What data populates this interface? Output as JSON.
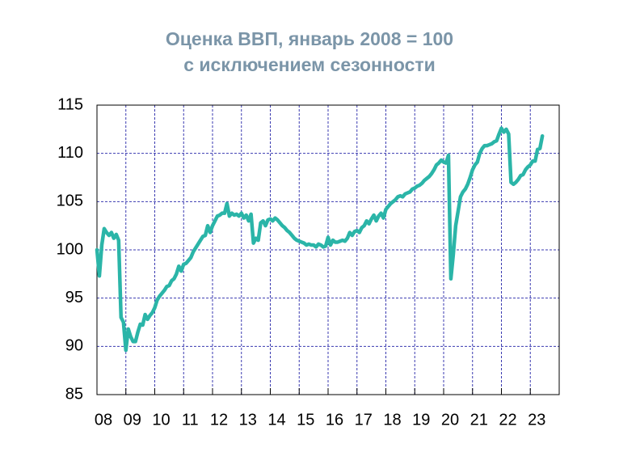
{
  "chart_data": {
    "type": "line",
    "title": "Оценка ВВП, январь 2008 = 100",
    "subtitle": "с исключением сезонности",
    "color": "#2bb5a8",
    "grid": true,
    "xlim": [
      2008,
      2024
    ],
    "xticks": [
      {
        "value": 2008,
        "label": "08"
      },
      {
        "value": 2009,
        "label": "09"
      },
      {
        "value": 2010,
        "label": "10"
      },
      {
        "value": 2011,
        "label": "11"
      },
      {
        "value": 2012,
        "label": "12"
      },
      {
        "value": 2013,
        "label": "13"
      },
      {
        "value": 2014,
        "label": "14"
      },
      {
        "value": 2015,
        "label": "15"
      },
      {
        "value": 2016,
        "label": "16"
      },
      {
        "value": 2017,
        "label": "17"
      },
      {
        "value": 2018,
        "label": "18"
      },
      {
        "value": 2019,
        "label": "19"
      },
      {
        "value": 2020,
        "label": "20"
      },
      {
        "value": 2021,
        "label": "21"
      },
      {
        "value": 2022,
        "label": "22"
      },
      {
        "value": 2023,
        "label": "23"
      }
    ],
    "ylim": [
      85,
      115
    ],
    "yticks": [
      85,
      90,
      95,
      100,
      105,
      110,
      115
    ],
    "x": [
      2008,
      2008.083,
      2008.167,
      2008.25,
      2008.333,
      2008.417,
      2008.5,
      2008.583,
      2008.667,
      2008.75,
      2008.833,
      2008.917,
      2009,
      2009.083,
      2009.167,
      2009.25,
      2009.333,
      2009.417,
      2009.5,
      2009.583,
      2009.667,
      2009.75,
      2009.833,
      2009.917,
      2010,
      2010.083,
      2010.167,
      2010.25,
      2010.333,
      2010.417,
      2010.5,
      2010.583,
      2010.667,
      2010.75,
      2010.833,
      2010.917,
      2011,
      2011.083,
      2011.167,
      2011.25,
      2011.333,
      2011.417,
      2011.5,
      2011.583,
      2011.667,
      2011.75,
      2011.833,
      2011.917,
      2012,
      2012.083,
      2012.167,
      2012.25,
      2012.333,
      2012.417,
      2012.5,
      2012.583,
      2012.667,
      2012.75,
      2012.833,
      2012.917,
      2013,
      2013.083,
      2013.167,
      2013.25,
      2013.333,
      2013.417,
      2013.5,
      2013.583,
      2013.667,
      2013.75,
      2013.833,
      2013.917,
      2014,
      2014.083,
      2014.167,
      2014.25,
      2014.333,
      2014.417,
      2014.5,
      2014.583,
      2014.667,
      2014.75,
      2014.833,
      2014.917,
      2015,
      2015.083,
      2015.167,
      2015.25,
      2015.333,
      2015.417,
      2015.5,
      2015.583,
      2015.667,
      2015.75,
      2015.833,
      2015.917,
      2016,
      2016.083,
      2016.167,
      2016.25,
      2016.333,
      2016.417,
      2016.5,
      2016.583,
      2016.667,
      2016.75,
      2016.833,
      2016.917,
      2017,
      2017.083,
      2017.167,
      2017.25,
      2017.333,
      2017.417,
      2017.5,
      2017.583,
      2017.667,
      2017.75,
      2017.833,
      2017.917,
      2018,
      2018.083,
      2018.167,
      2018.25,
      2018.333,
      2018.417,
      2018.5,
      2018.583,
      2018.667,
      2018.75,
      2018.833,
      2018.917,
      2019,
      2019.083,
      2019.167,
      2019.25,
      2019.333,
      2019.417,
      2019.5,
      2019.583,
      2019.667,
      2019.75,
      2019.833,
      2019.917,
      2020,
      2020.083,
      2020.167,
      2020.25,
      2020.333,
      2020.417,
      2020.5,
      2020.583,
      2020.667,
      2020.75,
      2020.833,
      2020.917,
      2021,
      2021.083,
      2021.167,
      2021.25,
      2021.333,
      2021.417,
      2021.5,
      2021.583,
      2021.667,
      2021.75,
      2021.833,
      2021.917,
      2022,
      2022.083,
      2022.167,
      2022.25,
      2022.333,
      2022.417,
      2022.5,
      2022.583,
      2022.667,
      2022.75,
      2022.833,
      2022.917,
      2023,
      2023.083,
      2023.167,
      2023.25,
      2023.333,
      2023.417
    ],
    "values": [
      100,
      97.3,
      100.5,
      102.2,
      101.8,
      101.5,
      101.8,
      101.2,
      101.6,
      101,
      93,
      92.5,
      89.6,
      91.8,
      91,
      90.5,
      90.5,
      91.5,
      92.3,
      92.2,
      93.3,
      92.8,
      93.2,
      93.5,
      94,
      94.8,
      95.2,
      95.5,
      95.8,
      96.2,
      96.3,
      96.8,
      97,
      97.5,
      98.3,
      97.8,
      98.5,
      98.6,
      98.9,
      99.2,
      99.8,
      100.2,
      100.6,
      101,
      101.4,
      101.5,
      102.5,
      101.8,
      102.5,
      103,
      103.5,
      103.6,
      103.8,
      103.8,
      104.8,
      103.5,
      103.8,
      103.6,
      103.7,
      103.5,
      103.8,
      103.3,
      103.6,
      103,
      103.7,
      100.7,
      101.2,
      101,
      102.8,
      103,
      102.5,
      103.1,
      103.2,
      103,
      103.3,
      103.1,
      102.8,
      102.5,
      102.3,
      102,
      101.8,
      101.5,
      101.2,
      101,
      100.9,
      100.8,
      100.7,
      100.5,
      100.6,
      100.5,
      100.5,
      100.3,
      100.6,
      100.5,
      100.3,
      100.4,
      101.3,
      100.5,
      101,
      100.8,
      100.8,
      100.9,
      101,
      100.9,
      101.2,
      101.8,
      101.5,
      101.9,
      102,
      101.8,
      102.3,
      102.5,
      103,
      102.7,
      103.2,
      103.6,
      103,
      103.5,
      103.8,
      103.3,
      104.2,
      104.5,
      104.8,
      105,
      105.2,
      105.5,
      105.6,
      105.5,
      105.8,
      105.9,
      106,
      106.3,
      106.4,
      106.6,
      106.7,
      106.9,
      107.2,
      107.4,
      107.6,
      107.9,
      108.3,
      108.8,
      109,
      109.3,
      109.1,
      109,
      109.8,
      97,
      99.5,
      102.5,
      104,
      105.5,
      106,
      106.3,
      106.8,
      107.5,
      108.3,
      108.8,
      109.1,
      110,
      110.5,
      110.8,
      110.8,
      110.9,
      111,
      111.2,
      111.3,
      112,
      112.6,
      112.2,
      112.5,
      112,
      107,
      106.8,
      107,
      107.3,
      107.7,
      107.8,
      108.3,
      108.6,
      108.8,
      109.2,
      109.2,
      110.4,
      110.5,
      111.8
    ]
  }
}
